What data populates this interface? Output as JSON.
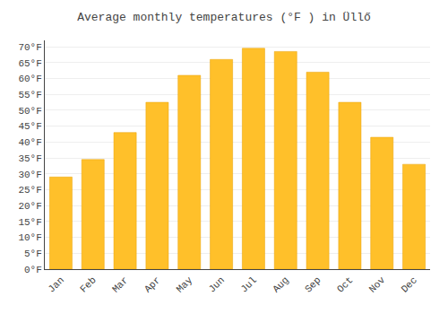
{
  "chart_data": {
    "type": "bar",
    "title": "Average monthly temperatures (°F ) in Üllő",
    "categories": [
      "Jan",
      "Feb",
      "Mar",
      "Apr",
      "May",
      "Jun",
      "Jul",
      "Aug",
      "Sep",
      "Oct",
      "Nov",
      "Dec"
    ],
    "values": [
      29,
      34.5,
      43,
      52.5,
      61,
      66,
      69.5,
      68.5,
      62,
      52.5,
      41.5,
      33
    ],
    "color": "#FFC02A",
    "ylim": [
      0,
      72
    ],
    "yticks": [
      {
        "value": 0,
        "label": "0°F"
      },
      {
        "value": 5,
        "label": "5°F"
      },
      {
        "value": 10,
        "label": "10°F"
      },
      {
        "value": 15,
        "label": "15°F"
      },
      {
        "value": 20,
        "label": "20°F"
      },
      {
        "value": 25,
        "label": "25°F"
      },
      {
        "value": 30,
        "label": "30°F"
      },
      {
        "value": 35,
        "label": "35°F"
      },
      {
        "value": 40,
        "label": "40°F"
      },
      {
        "value": 45,
        "label": "45°F"
      },
      {
        "value": 50,
        "label": "50°F"
      },
      {
        "value": 55,
        "label": "55°F"
      },
      {
        "value": 60,
        "label": "60°F"
      },
      {
        "value": 65,
        "label": "65°F"
      },
      {
        "value": 70,
        "label": "70°F"
      }
    ],
    "grid": true
  }
}
